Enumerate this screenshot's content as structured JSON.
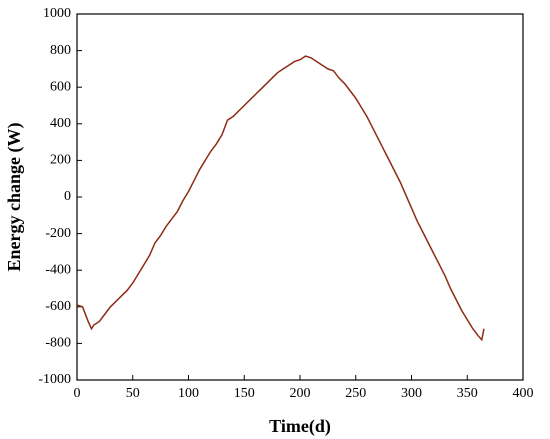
{
  "chart_data": {
    "type": "line",
    "x_label": "Time(d)",
    "y_label": "Energy change (W)",
    "x": [
      0,
      5,
      10,
      13,
      15,
      20,
      25,
      30,
      35,
      40,
      45,
      50,
      55,
      60,
      65,
      70,
      75,
      80,
      85,
      90,
      95,
      100,
      105,
      110,
      115,
      120,
      125,
      130,
      135,
      140,
      145,
      150,
      155,
      160,
      165,
      170,
      175,
      180,
      185,
      190,
      195,
      200,
      205,
      210,
      215,
      220,
      225,
      230,
      235,
      240,
      245,
      250,
      255,
      260,
      265,
      270,
      275,
      280,
      285,
      290,
      295,
      300,
      305,
      310,
      315,
      320,
      325,
      330,
      335,
      340,
      345,
      350,
      355,
      360,
      363,
      365
    ],
    "series": [
      {
        "name": "Energy change",
        "color": "#8e2b16",
        "values": [
          -590,
          -600,
          -680,
          -720,
          -700,
          -680,
          -640,
          -600,
          -570,
          -540,
          -510,
          -470,
          -420,
          -370,
          -320,
          -250,
          -210,
          -160,
          -120,
          -80,
          -20,
          30,
          90,
          150,
          200,
          250,
          290,
          340,
          420,
          440,
          470,
          500,
          530,
          560,
          590,
          620,
          650,
          680,
          700,
          720,
          740,
          750,
          770,
          760,
          740,
          720,
          700,
          690,
          650,
          620,
          580,
          540,
          490,
          440,
          380,
          320,
          260,
          200,
          140,
          80,
          10,
          -60,
          -130,
          -190,
          -250,
          -310,
          -370,
          -430,
          -500,
          -560,
          -620,
          -670,
          -720,
          -760,
          -780,
          -720
        ]
      }
    ],
    "xlim": [
      0,
      400
    ],
    "xticks": [
      0,
      50,
      100,
      150,
      200,
      250,
      300,
      350,
      400
    ],
    "ylim": [
      -1000,
      1000
    ],
    "yticks": [
      -1000,
      -800,
      -600,
      -400,
      -200,
      0,
      200,
      400,
      600,
      800,
      1000
    ]
  }
}
